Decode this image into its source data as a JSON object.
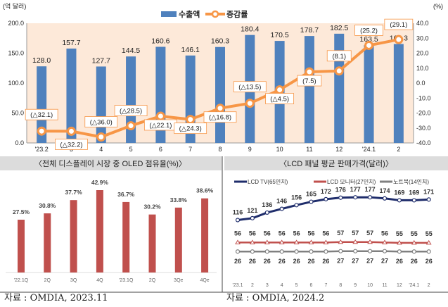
{
  "chart_data": [
    {
      "type": "bar+line",
      "ylabel_left": "(억 달러)",
      "ylabel_right": "(%)",
      "categories": [
        "'23.2",
        "3",
        "4",
        "5",
        "6",
        "7",
        "8",
        "9",
        "10",
        "11",
        "12",
        "'24.1",
        "2"
      ],
      "series": [
        {
          "name": "수출액",
          "type": "bar",
          "axis": "left",
          "color": "#4f81bd",
          "values": [
            128.0,
            157.7,
            127.7,
            144.5,
            160.6,
            146.1,
            160.3,
            180.4,
            170.5,
            178.7,
            182.5,
            163.5,
            165.3
          ],
          "labels": [
            "128.0",
            "157.7",
            "127.7",
            "144.5",
            "160.6",
            "146.1",
            "160.3",
            "180.4",
            "170.5",
            "178.7",
            "182.5",
            "163.5",
            "165.3"
          ]
        },
        {
          "name": "증감률",
          "type": "line",
          "axis": "right",
          "color": "#f79646",
          "values": [
            -32.1,
            -32.2,
            -36.0,
            -28.5,
            -22.1,
            -24.3,
            -16.8,
            -13.5,
            -4.5,
            7.5,
            8.1,
            25.2,
            29.1
          ],
          "labels": [
            "(△32.1)",
            "(△32.2)",
            "(△36.0)",
            "(△28.5)",
            "(△22.1)",
            "(△24.3)",
            "(△16.8)",
            "(△13.5)",
            "(△4.5)",
            "(7.5)",
            "(8.1)",
            "(25.2)",
            "(29.1)"
          ]
        }
      ],
      "ylim_left": [
        0,
        200
      ],
      "yticks_left": [
        "0.0",
        "50.0",
        "100.0",
        "150.0",
        "200.0"
      ],
      "ylim_right": [
        -40,
        40
      ],
      "yticks_right": [
        "-40.0",
        "-30.0",
        "-20.0",
        "-10.0",
        "0.0",
        "10.0",
        "20.0",
        "30.0",
        "40.0"
      ],
      "legend": "top-center",
      "background": "#fde9d9"
    },
    {
      "type": "bar",
      "title": "〈전체 디스플레이 시장 중 OLED 점유율(%)〉",
      "categories": [
        "'22.1Q",
        "2Q",
        "3Q",
        "4Q",
        "'23.1Q",
        "2Q",
        "3Qe",
        "4Qe"
      ],
      "values": [
        27.5,
        30.8,
        37.7,
        42.9,
        36.7,
        30.2,
        33.8,
        38.6
      ],
      "labels": [
        "27.5%",
        "30.8%",
        "37.7%",
        "42.9%",
        "36.7%",
        "30.2%",
        "33.8%",
        "38.6%"
      ],
      "color": "#c0504d",
      "source": "자료 : OMDIA, 2023.11"
    },
    {
      "type": "line",
      "title": "〈LCD 패널 평균 판매가격(달러)〉",
      "categories": [
        "'23.1",
        "2",
        "3",
        "4",
        "5",
        "6",
        "7",
        "8",
        "9",
        "10",
        "11",
        "12",
        "'24.1",
        "2"
      ],
      "series": [
        {
          "name": "LCD TV(65인치)",
          "color": "#1f2d6b",
          "values": [
            116,
            121,
            136,
            146,
            156,
            165,
            172,
            176,
            177,
            177,
            174,
            169,
            169,
            171
          ]
        },
        {
          "name": "LCD 모니터(27인치)",
          "color": "#c0504d",
          "values": [
            56,
            56,
            56,
            56,
            56,
            56,
            56,
            57,
            57,
            57,
            56,
            55,
            55,
            55
          ]
        },
        {
          "name": "노트북(14인치)",
          "color": "#808080",
          "values": [
            26,
            26,
            26,
            26,
            26,
            26,
            26,
            27,
            27,
            27,
            27,
            26,
            26,
            26
          ]
        }
      ],
      "legend": "top",
      "source": "자료 : OMDIA, 2024.2"
    }
  ]
}
